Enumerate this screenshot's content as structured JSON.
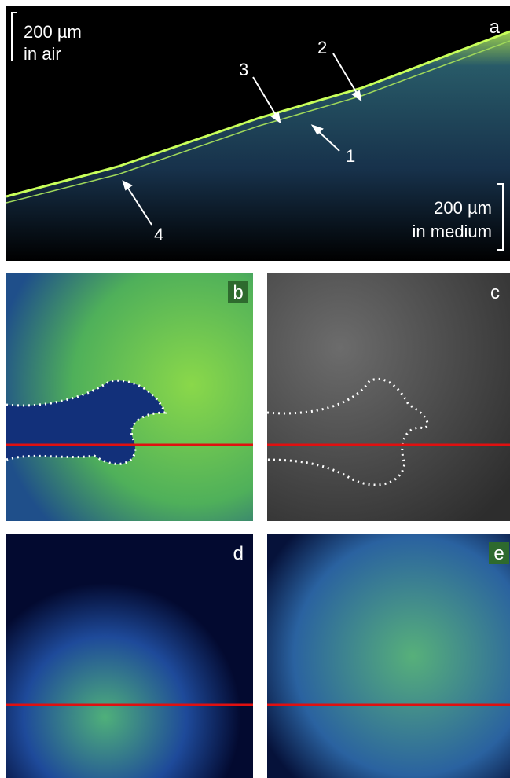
{
  "panel_a": {
    "label": "a",
    "scale_top": {
      "line1": "200 µm",
      "line2": "in air"
    },
    "scale_bottom": {
      "line1": "200 µm",
      "line2": "in medium"
    },
    "markers": [
      "1",
      "2",
      "3",
      "4"
    ]
  },
  "panels": {
    "b": "b",
    "c": "c",
    "d": "d",
    "e": "e"
  }
}
